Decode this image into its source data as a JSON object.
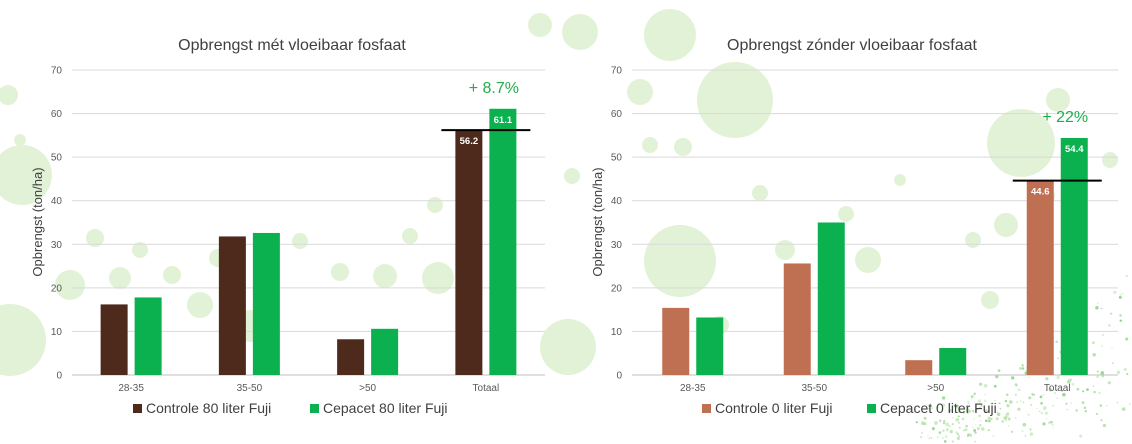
{
  "colors": {
    "green": "#0bb04f",
    "dark_brown": "#4d2a1c",
    "light_brown": "#c07052",
    "annotation_green": "#1fae4b",
    "decor_green": "#e2f2d6"
  },
  "chart_data": [
    {
      "type": "bar",
      "title": "Opbrengst mét vloeibaar fosfaat",
      "ylabel": "Opbrengst (ton/ha)",
      "xlabel": "",
      "ylim": [
        0,
        70
      ],
      "yticks": [
        0,
        10,
        20,
        30,
        40,
        50,
        60,
        70
      ],
      "grid": true,
      "legend_position": "bottom",
      "categories": [
        "28-35",
        "35-50",
        ">50",
        "Totaal"
      ],
      "series": [
        {
          "name": "Controle 80 liter Fuji",
          "color": "#4d2a1c",
          "values": [
            16.2,
            31.8,
            8.2,
            56.2
          ],
          "labels": [
            "",
            "",
            "",
            "56.2"
          ]
        },
        {
          "name": "Cepacet 80 liter Fuji",
          "color": "#0bb04f",
          "values": [
            17.8,
            32.6,
            10.6,
            61.1
          ],
          "labels": [
            "",
            "",
            "",
            "61.1"
          ]
        }
      ],
      "reference_line": {
        "category": "Totaal",
        "value": 56.2
      },
      "annotation": {
        "category": "Totaal",
        "text": "+ 8.7%"
      }
    },
    {
      "type": "bar",
      "title": "Opbrengst zónder vloeibaar fosfaat",
      "ylabel": "Opbrengst (ton/ha)",
      "xlabel": "",
      "ylim": [
        0,
        70
      ],
      "yticks": [
        0,
        10,
        20,
        30,
        40,
        50,
        60,
        70
      ],
      "grid": true,
      "legend_position": "bottom",
      "categories": [
        "28-35",
        "35-50",
        ">50",
        "Totaal"
      ],
      "series": [
        {
          "name": "Controle 0 liter Fuji",
          "color": "#c07052",
          "values": [
            15.4,
            25.6,
            3.4,
            44.6
          ],
          "labels": [
            "",
            "",
            "",
            "44.6"
          ]
        },
        {
          "name": "Cepacet 0 liter Fuji",
          "color": "#0bb04f",
          "values": [
            13.2,
            35.0,
            6.2,
            54.4
          ],
          "labels": [
            "",
            "",
            "",
            "54.4"
          ]
        }
      ],
      "reference_line": {
        "category": "Totaal",
        "value": 44.6
      },
      "annotation": {
        "category": "Totaal",
        "text": "+ 22%"
      }
    }
  ]
}
